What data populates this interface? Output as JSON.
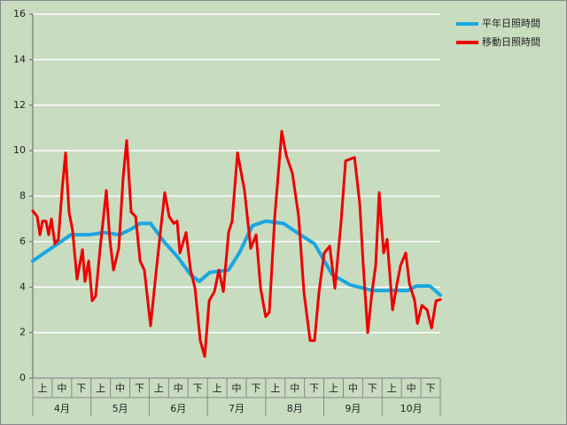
{
  "chart_data": {
    "type": "line",
    "categories": [
      "上",
      "中",
      "下",
      "上",
      "中",
      "下",
      "上",
      "中",
      "下",
      "上",
      "中",
      "下",
      "上",
      "中",
      "下",
      "上",
      "中",
      "下",
      "上",
      "中",
      "下"
    ],
    "category_groups": [
      "4月",
      "5月",
      "6月",
      "7月",
      "8月",
      "9月",
      "10月"
    ],
    "xlim": [
      0,
      21
    ],
    "ylim": [
      0,
      16
    ],
    "yticks": [
      0,
      2,
      4,
      6,
      8,
      10,
      12,
      14,
      16
    ],
    "grid": true,
    "legend": "right",
    "series": [
      {
        "name": "平年日照時間",
        "color": "#1aa7e0",
        "x": [
          0,
          0.59,
          1.28,
          1.96,
          2.88,
          3.7,
          4.47,
          5.07,
          5.53,
          6.07,
          6.76,
          7.44,
          8.13,
          8.58,
          9.13,
          10.09,
          10.64,
          11.32,
          12.0,
          12.92,
          13.61,
          14.52,
          15.43,
          16.35,
          17.49,
          19.32,
          19.77,
          20.46,
          21.0
        ],
        "values": [
          5.15,
          5.5,
          5.9,
          6.3,
          6.3,
          6.4,
          6.3,
          6.55,
          6.8,
          6.8,
          6.0,
          5.35,
          4.55,
          4.25,
          4.65,
          4.75,
          5.5,
          6.7,
          6.9,
          6.8,
          6.4,
          5.9,
          4.55,
          4.1,
          3.85,
          3.85,
          4.05,
          4.05,
          3.65
        ]
      },
      {
        "name": "移動日照時間",
        "color": "#ee0000",
        "x": [
          0,
          0.23,
          0.37,
          0.5,
          0.68,
          0.82,
          0.96,
          1.14,
          1.32,
          1.51,
          1.69,
          1.87,
          2.05,
          2.28,
          2.56,
          2.69,
          2.88,
          3.06,
          3.24,
          3.47,
          3.79,
          3.97,
          4.16,
          4.43,
          4.66,
          4.84,
          5.07,
          5.3,
          5.53,
          5.75,
          6.07,
          6.39,
          6.8,
          7.03,
          7.26,
          7.44,
          7.58,
          7.9,
          8.13,
          8.36,
          8.63,
          8.86,
          9.09,
          9.36,
          9.59,
          9.82,
          10.09,
          10.27,
          10.55,
          10.91,
          11.23,
          11.51,
          11.74,
          12.0,
          12.19,
          12.47,
          12.83,
          13.06,
          13.38,
          13.7,
          13.97,
          14.29,
          14.52,
          14.75,
          15.02,
          15.3,
          15.57,
          15.89,
          16.12,
          16.58,
          16.85,
          17.03,
          17.26,
          17.49,
          17.67,
          17.85,
          18.08,
          18.26,
          18.54,
          18.77,
          18.95,
          19.22,
          19.41,
          19.68,
          19.82,
          20.05,
          20.32,
          20.55,
          20.78,
          21.0
        ],
        "values": [
          7.35,
          7.1,
          6.3,
          6.9,
          6.9,
          6.3,
          7.0,
          5.9,
          6.1,
          8.25,
          9.9,
          7.3,
          6.5,
          4.35,
          5.65,
          4.25,
          5.15,
          3.4,
          3.6,
          5.7,
          8.25,
          6.1,
          4.75,
          5.7,
          8.85,
          10.45,
          7.3,
          7.1,
          5.15,
          4.75,
          2.3,
          4.95,
          8.15,
          7.1,
          6.8,
          6.9,
          5.5,
          6.4,
          4.75,
          3.95,
          1.65,
          0.95,
          3.4,
          3.8,
          4.75,
          3.8,
          6.4,
          6.9,
          9.9,
          8.25,
          5.7,
          6.3,
          3.95,
          2.7,
          2.9,
          7.1,
          10.85,
          9.8,
          9.0,
          7.1,
          3.8,
          1.65,
          1.65,
          3.8,
          5.5,
          5.8,
          3.95,
          6.9,
          9.55,
          9.7,
          7.65,
          4.95,
          2.0,
          3.85,
          4.95,
          8.15,
          5.5,
          6.1,
          3.0,
          4.15,
          4.95,
          5.5,
          4.15,
          3.4,
          2.4,
          3.2,
          3.0,
          2.2,
          3.4,
          3.45
        ]
      }
    ]
  }
}
